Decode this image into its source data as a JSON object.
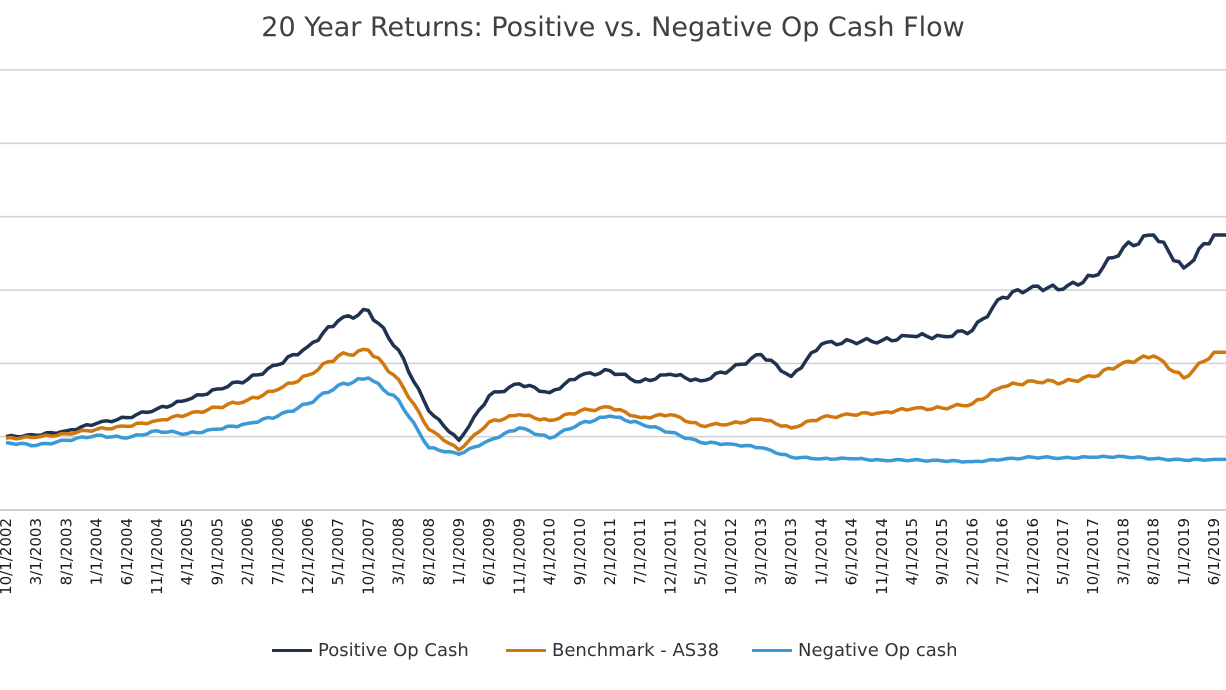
{
  "chart_data": {
    "type": "line",
    "title": "20 Year Returns: Positive vs. Negative Op Cash Flow",
    "xlabel": "",
    "ylabel": "",
    "ylim": [
      0,
      600
    ],
    "grid": true,
    "legend_position": "bottom",
    "x_tick_labels": [
      "10/1/2002",
      "3/1/2003",
      "8/1/2003",
      "1/1/2004",
      "6/1/2004",
      "11/1/2004",
      "4/1/2005",
      "9/1/2005",
      "2/1/2006",
      "7/1/2006",
      "12/1/2006",
      "5/1/2007",
      "10/1/2007",
      "3/1/2008",
      "8/1/2008",
      "1/1/2009",
      "6/1/2009",
      "11/1/2009",
      "4/1/2010",
      "9/1/2010",
      "2/1/2011",
      "7/1/2011",
      "12/1/2011",
      "5/1/2012",
      "10/1/2012",
      "3/1/2013",
      "8/1/2013",
      "1/1/2014",
      "6/1/2014",
      "11/1/2014",
      "4/1/2015",
      "9/1/2015",
      "2/1/2016",
      "7/1/2016",
      "12/1/2016",
      "5/1/2017",
      "10/1/2017",
      "3/1/2018",
      "8/1/2018",
      "1/1/2019",
      "6/1/2019"
    ],
    "series": [
      {
        "name": "Positive Op Cash",
        "color": "#1f3250",
        "values": [
          100,
          102,
          108,
          118,
          126,
          138,
          150,
          165,
          178,
          198,
          223,
          258,
          272,
          218,
          135,
          95,
          156,
          172,
          160,
          183,
          190,
          175,
          185,
          176,
          192,
          212,
          182,
          226,
          230,
          231,
          237,
          237,
          245,
          290,
          305,
          301,
          319,
          358,
          375,
          330,
          375
        ]
      },
      {
        "name": "Benchmark - AS38",
        "color": "#d0780e",
        "values": [
          98,
          99,
          104,
          110,
          114,
          122,
          130,
          140,
          150,
          164,
          184,
          210,
          218,
          178,
          110,
          82,
          120,
          130,
          122,
          135,
          140,
          126,
          130,
          115,
          118,
          124,
          112,
          126,
          130,
          133,
          138,
          139,
          145,
          168,
          176,
          174,
          182,
          201,
          210,
          180,
          215
        ]
      },
      {
        "name": "Negative Op cash",
        "color": "#3b9ad6",
        "values": [
          92,
          88,
          95,
          102,
          98,
          108,
          104,
          110,
          118,
          128,
          145,
          170,
          180,
          150,
          85,
          76,
          95,
          112,
          98,
          118,
          128,
          118,
          106,
          92,
          90,
          85,
          72,
          70,
          70,
          68,
          68,
          67,
          66,
          69,
          72,
          71,
          72,
          73,
          70,
          68,
          69
        ]
      }
    ]
  },
  "legend": {
    "items": [
      {
        "label": "Positive Op Cash",
        "color": "#1f3250"
      },
      {
        "label": "Benchmark - AS38",
        "color": "#d0780e"
      },
      {
        "label": "Negative Op cash",
        "color": "#3b9ad6"
      }
    ]
  }
}
